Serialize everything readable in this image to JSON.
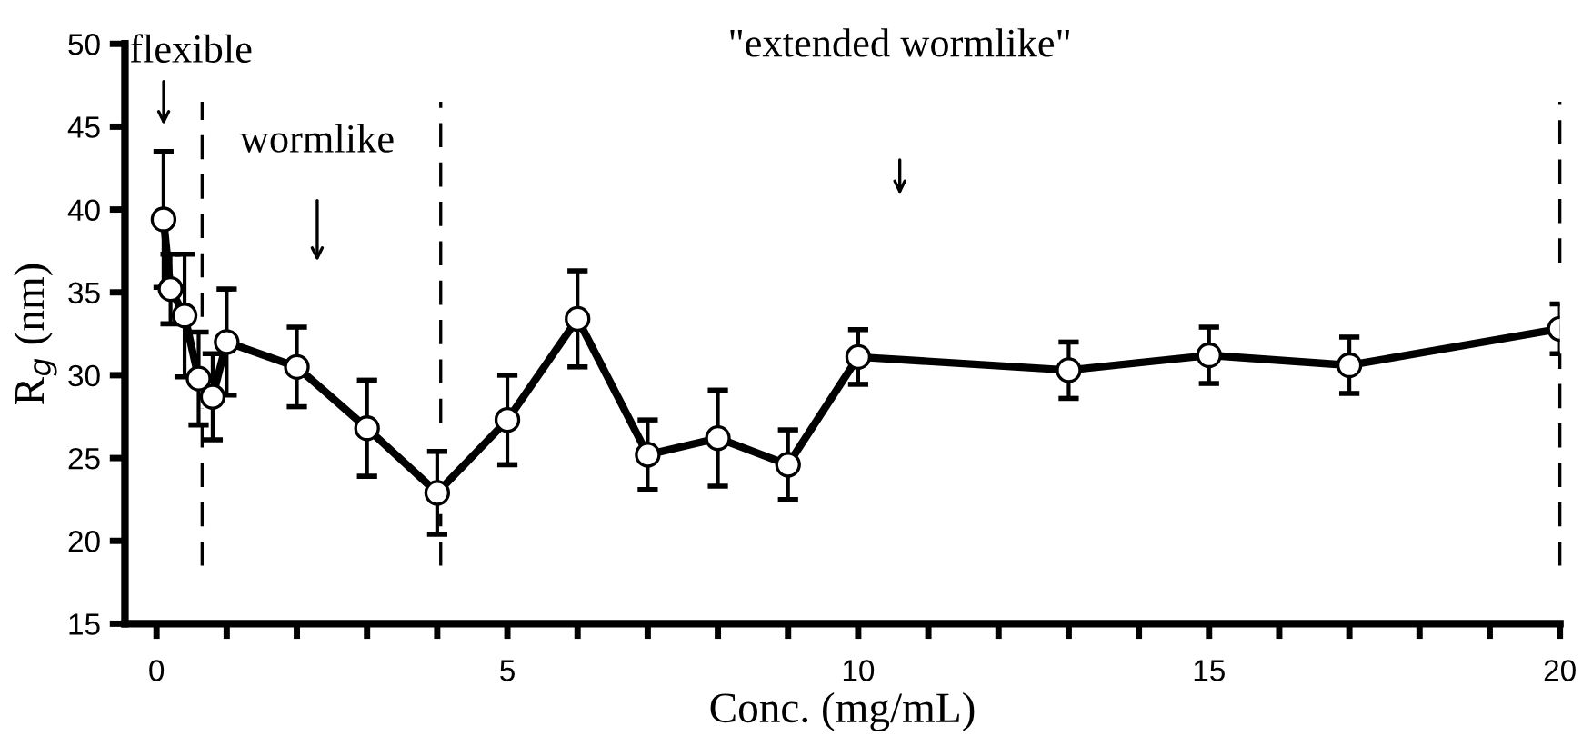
{
  "chart_data": {
    "type": "line",
    "xlabel": "Conc. (mg/mL)",
    "ylabel": "R$_{g}$ (nm)",
    "x": [
      0.1,
      0.2,
      0.4,
      0.6,
      0.8,
      1,
      2,
      3,
      4,
      5,
      6,
      7,
      8,
      9,
      10,
      13,
      15,
      17,
      20
    ],
    "series": [
      {
        "color": "#000000",
        "values": [
          39.4,
          35.2,
          33.6,
          29.8,
          28.7,
          32.0,
          30.5,
          26.8,
          22.9,
          27.3,
          33.4,
          25.2,
          26.2,
          24.6,
          31.1,
          30.3,
          31.2,
          30.6,
          32.8
        ],
        "errors": [
          4.1,
          2.1,
          3.7,
          2.8,
          2.6,
          3.2,
          2.4,
          2.9,
          2.5,
          2.7,
          2.9,
          2.1,
          2.9,
          2.1,
          1.65,
          1.7,
          1.7,
          1.7,
          1.5
        ]
      }
    ],
    "marker": "circle",
    "line_style": "solid",
    "grid": false,
    "legend": false,
    "xlim": [
      -0.45,
      20
    ],
    "ylim": [
      15,
      50
    ],
    "xticks": [
      0,
      {
        "value": 1,
        "label": null
      },
      {
        "value": 2,
        "label": null
      },
      {
        "value": 3,
        "label": null
      },
      {
        "value": 4,
        "label": null
      },
      5,
      {
        "value": 6,
        "label": null
      },
      {
        "value": 7,
        "label": null
      },
      {
        "value": 8,
        "label": null
      },
      {
        "value": 9,
        "label": null
      },
      10,
      {
        "value": 11,
        "label": null
      },
      {
        "value": 12,
        "label": null
      },
      {
        "value": 13,
        "label": null
      },
      {
        "value": 14,
        "label": null
      },
      15,
      {
        "value": 16,
        "label": null
      },
      {
        "value": 17,
        "label": null
      },
      {
        "value": 18,
        "label": null
      },
      {
        "value": 19,
        "label": null
      },
      20
    ],
    "yticks": [
      15,
      20,
      25,
      30,
      35,
      40,
      45,
      50
    ],
    "ref_lines": [
      {
        "axis": "x",
        "value": 0.65,
        "line_style": "dashed",
        "color": "#000000"
      },
      {
        "axis": "x",
        "value": 4.05,
        "line_style": "dashed",
        "color": "#000000"
      },
      {
        "axis": "x",
        "value": 20,
        "line_style": "dashed",
        "color": "#000000"
      }
    ],
    "annotations": [
      "flexible",
      "wormlike",
      "\"extended wormlike\""
    ]
  }
}
